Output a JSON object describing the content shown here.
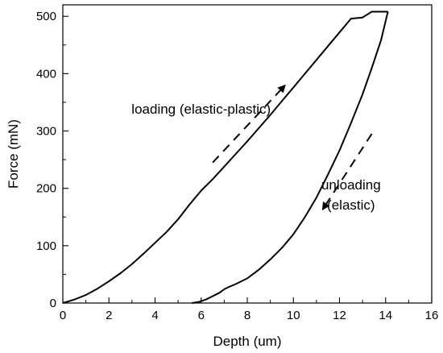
{
  "chart_data": {
    "type": "line",
    "title": "",
    "xlabel": "Depth (um)",
    "ylabel": "Force (mN)",
    "xlim": [
      0,
      16
    ],
    "ylim": [
      0,
      520
    ],
    "xticks": [
      0,
      2,
      4,
      6,
      8,
      10,
      12,
      14,
      16
    ],
    "yticks": [
      0,
      100,
      200,
      300,
      400,
      500
    ],
    "grid": false,
    "legend": "none",
    "series": [
      {
        "color": "#000000",
        "x": [
          0.0,
          0.5,
          1.0,
          1.5,
          2.0,
          2.5,
          3.0,
          3.5,
          4.0,
          4.5,
          5.0,
          5.5,
          6.0,
          6.5,
          7.0,
          7.5,
          8.0,
          8.5,
          9.0,
          9.5,
          10.0,
          10.5,
          11.0,
          11.5,
          12.0,
          12.5,
          13.0,
          13.4,
          13.6,
          14.1
        ],
        "y": [
          0,
          6,
          14,
          25,
          38,
          52,
          68,
          86,
          105,
          124,
          146,
          172,
          196,
          216,
          238,
          260,
          282,
          305,
          328,
          352,
          376,
          400,
          424,
          448,
          472,
          496,
          498,
          508,
          508,
          508
        ]
      },
      {
        "color": "#000000",
        "x": [
          14.1,
          13.8,
          13.4,
          13.0,
          12.5,
          12.0,
          11.5,
          11.0,
          10.5,
          10.0,
          9.5,
          9.0,
          8.5,
          8.0,
          7.5,
          7.2,
          7.0,
          6.8,
          6.5,
          6.2,
          5.9,
          5.6
        ],
        "y": [
          508,
          458,
          410,
          364,
          314,
          266,
          224,
          184,
          150,
          120,
          96,
          76,
          58,
          43,
          33,
          28,
          24,
          18,
          12,
          6,
          2,
          0
        ]
      }
    ],
    "annotations": [
      {
        "text": "loading (elastic-plastic)",
        "x": 6.0,
        "y": 330,
        "arrow_from": [
          6.5,
          245
        ],
        "arrow_to": [
          9.6,
          378
        ]
      },
      {
        "text_lines": [
          "unloading",
          "(elastic)"
        ],
        "x": 12.5,
        "y": 198,
        "arrow_from": [
          13.4,
          295
        ],
        "arrow_to": [
          11.3,
          165
        ]
      }
    ]
  }
}
